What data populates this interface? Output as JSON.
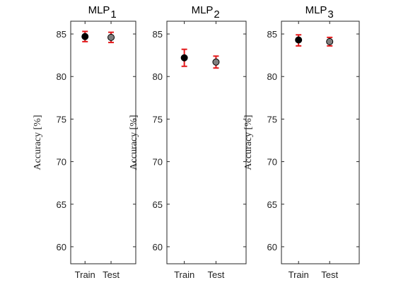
{
  "chart_data": [
    {
      "type": "scatter",
      "title": "MLP",
      "title_subscript": "1",
      "ylabel": "Accuracy [%]",
      "ylim": [
        58,
        86.5
      ],
      "yticks": [
        60,
        65,
        70,
        75,
        80,
        85
      ],
      "categories": [
        "Train",
        "Test"
      ],
      "points": [
        {
          "category": "Train",
          "mean": 84.7,
          "err_low": 84.1,
          "err_high": 85.3,
          "marker_color": "#000000"
        },
        {
          "category": "Test",
          "mean": 84.6,
          "err_low": 84.0,
          "err_high": 85.2,
          "marker_color": "#7f7f7f"
        }
      ]
    },
    {
      "type": "scatter",
      "title": "MLP",
      "title_subscript": "2",
      "ylabel": "Accuracy [%]",
      "ylim": [
        58,
        86.5
      ],
      "yticks": [
        60,
        65,
        70,
        75,
        80,
        85
      ],
      "categories": [
        "Train",
        "Test"
      ],
      "points": [
        {
          "category": "Train",
          "mean": 82.2,
          "err_low": 81.2,
          "err_high": 83.2,
          "marker_color": "#000000"
        },
        {
          "category": "Test",
          "mean": 81.7,
          "err_low": 81.0,
          "err_high": 82.4,
          "marker_color": "#7f7f7f"
        }
      ]
    },
    {
      "type": "scatter",
      "title": "MLP",
      "title_subscript": "3",
      "ylabel": "Accuracy [%]",
      "ylim": [
        58,
        86.5
      ],
      "yticks": [
        60,
        65,
        70,
        75,
        80,
        85
      ],
      "categories": [
        "Train",
        "Test"
      ],
      "points": [
        {
          "category": "Train",
          "mean": 84.3,
          "err_low": 83.6,
          "err_high": 84.9,
          "marker_color": "#000000"
        },
        {
          "category": "Test",
          "mean": 84.1,
          "err_low": 83.6,
          "err_high": 84.6,
          "marker_color": "#7f7f7f"
        }
      ]
    }
  ],
  "colors": {
    "error_bar": "#e31a1c",
    "axis": "#262626"
  }
}
